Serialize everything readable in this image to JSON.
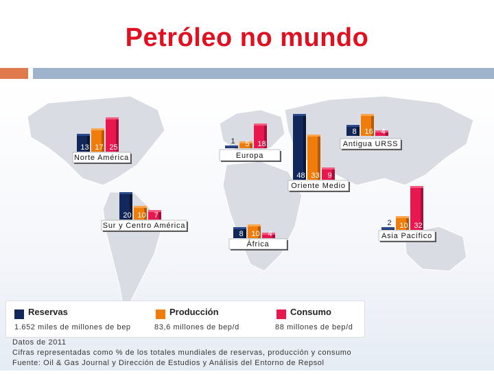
{
  "title": "Petróleo no mundo",
  "colors": {
    "reservas": "#12285a",
    "producao": "#f07c0a",
    "consumo": "#e8174f",
    "header_left": "#e07a4c",
    "header_right": "#9fb3cc"
  },
  "chart_data": {
    "type": "bar",
    "series": [
      {
        "name": "Reservas",
        "description": "1.652 miles de millones de bep"
      },
      {
        "name": "Producción",
        "description": "83,6 millones de bep/d"
      },
      {
        "name": "Consumo",
        "description": "88 millones de bep/d"
      }
    ],
    "regions": [
      {
        "name": "Norte América",
        "values": [
          13,
          17,
          25
        ]
      },
      {
        "name": "Europa",
        "values": [
          1,
          5,
          18
        ]
      },
      {
        "name": "Antigua URSS",
        "values": [
          8,
          16,
          4
        ]
      },
      {
        "name": "Oriente Medio",
        "values": [
          48,
          33,
          9
        ]
      },
      {
        "name": "Sur y Centro América",
        "values": [
          20,
          10,
          7
        ]
      },
      {
        "name": "África",
        "values": [
          8,
          10,
          4
        ]
      },
      {
        "name": "Asia Pacífico",
        "values": [
          2,
          10,
          32
        ]
      }
    ]
  },
  "notes": {
    "line1": "Datos de 2011",
    "line2": "Cifras representadas como % de los totales mundiales de reservas, producción y consumo",
    "line3": "Fuente: Oil & Gas Journal y Dirección de Estudios y Análisis del Entorno de Repsol"
  }
}
